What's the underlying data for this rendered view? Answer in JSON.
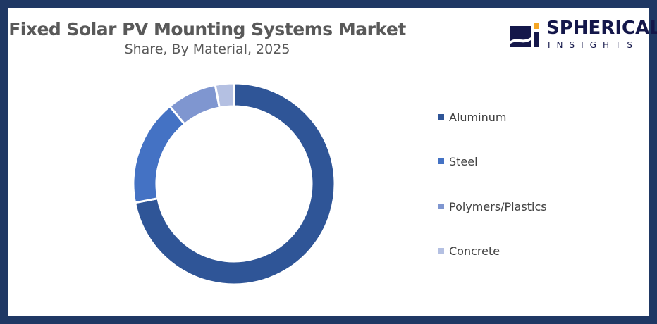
{
  "header": {
    "title": "Fixed Solar PV Mounting Systems Market",
    "subtitle": "Share, By Material,  2025"
  },
  "logo": {
    "name": "SPHERICAL",
    "tagline": "INSIGHTS",
    "colors": {
      "navy": "#14174a",
      "accent": "#f5a623"
    }
  },
  "legend": {
    "items": [
      {
        "label": "Aluminum",
        "color": "#2f5597"
      },
      {
        "label": "Steel",
        "color": "#4472c4"
      },
      {
        "label": "Polymers/Plastics",
        "color": "#7f96d0"
      },
      {
        "label": "Concrete",
        "color": "#b4c0e2"
      }
    ]
  },
  "chart_data": {
    "type": "pie",
    "subtype": "donut",
    "title": "Fixed Solar PV Mounting Systems Market",
    "subtitle": "Share, By Material,  2025",
    "categories": [
      "Aluminum",
      "Steel",
      "Polymers/Plastics",
      "Concrete"
    ],
    "values": [
      72,
      17,
      8,
      3
    ],
    "unit": "%",
    "colors": [
      "#2f5597",
      "#4472c4",
      "#7f96d0",
      "#b4c0e2"
    ],
    "legend_position": "right",
    "start_angle": "top, clockwise"
  }
}
